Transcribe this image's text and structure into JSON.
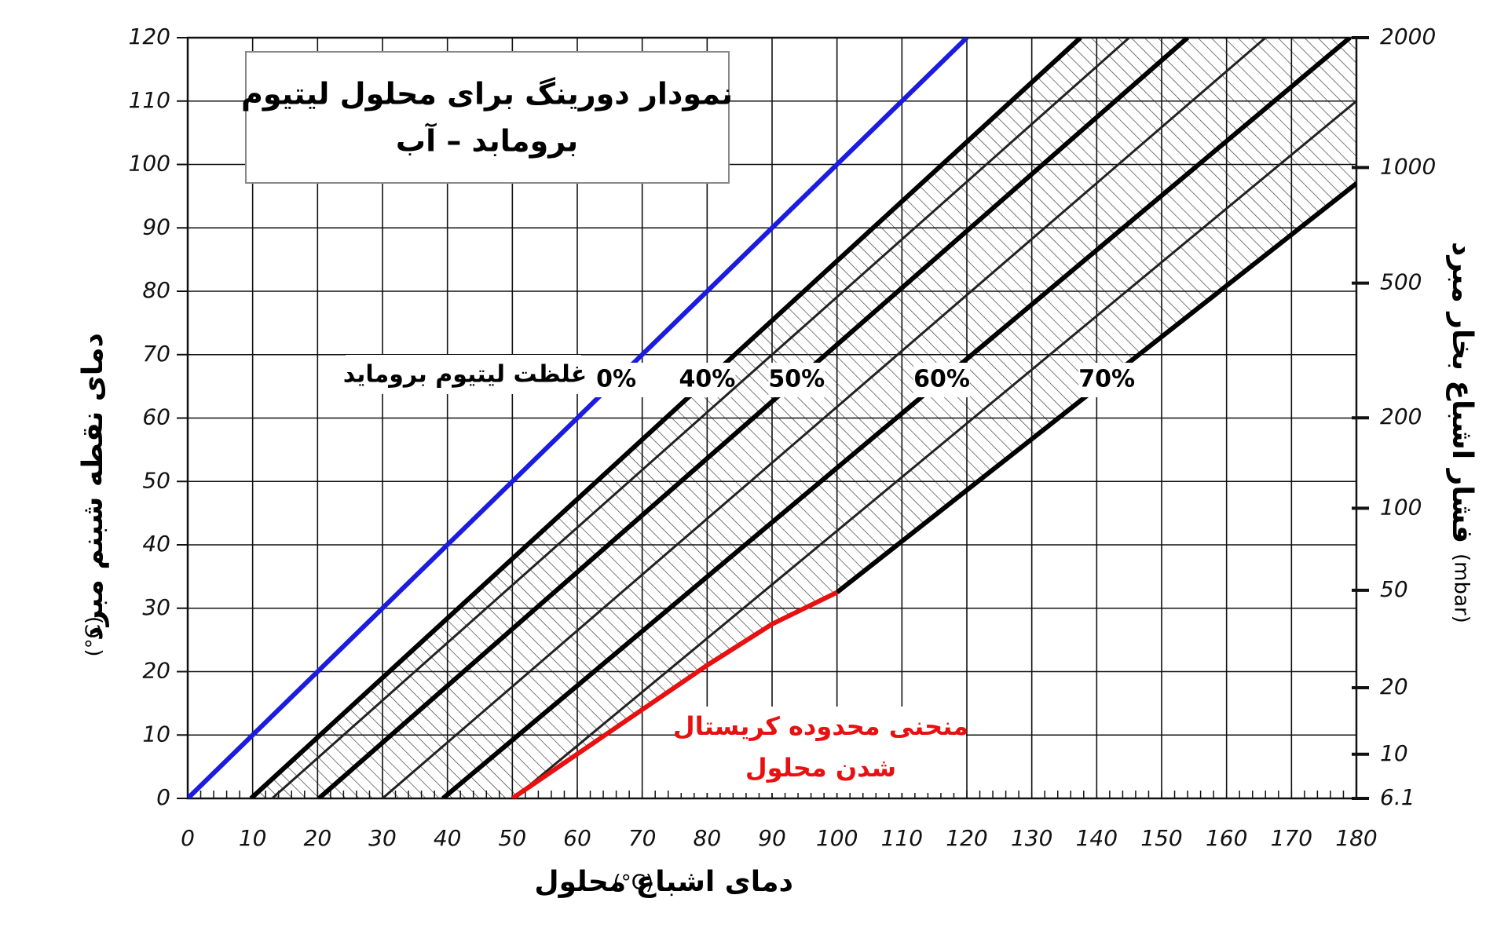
{
  "chart_data": {
    "type": "line",
    "title": "نمودار دورینگ برای محلول لیتیوم",
    "subtitle": "برومابد – آب",
    "xlabel": "دمای اشباع محلول",
    "xunit": "(°C)",
    "ylabel": "دمای نقطه شبنم مبرد",
    "yunit": "(°C)",
    "y2label": "فشار اشباع بخار مبرد",
    "y2unit": "(mbar)",
    "annotations": [
      "غلظت لیتیوم بروماید",
      "منحنی محدوده کریستال",
      "شدن محلول"
    ],
    "xlim": [
      0,
      180
    ],
    "xticks": [
      0,
      10,
      20,
      30,
      40,
      50,
      60,
      70,
      80,
      90,
      100,
      110,
      120,
      130,
      140,
      150,
      160,
      170,
      180
    ],
    "ylim": [
      0,
      120
    ],
    "yticks": [
      0,
      10,
      20,
      30,
      40,
      50,
      60,
      70,
      80,
      90,
      100,
      110,
      120
    ],
    "y2lim": [
      6.1,
      2000
    ],
    "y2scale": "water-saturation",
    "y2ticks": [
      6.1,
      10,
      20,
      50,
      100,
      200,
      500,
      1000,
      2000
    ],
    "grid": true,
    "series": [
      {
        "name": "0%",
        "color": "#1c1ce0",
        "x": [
          0,
          120
        ],
        "values": [
          0,
          120
        ]
      },
      {
        "name": "40%",
        "color": "#000000",
        "x": [
          9.75,
          137.5
        ],
        "values": [
          0,
          120
        ]
      },
      {
        "color": "#222222",
        "x": [
          13,
          145
        ],
        "values": [
          0,
          120
        ]
      },
      {
        "name": "50%",
        "color": "#000000",
        "x": [
          20.2,
          154
        ],
        "values": [
          0,
          120
        ]
      },
      {
        "color": "#222222",
        "x": [
          30,
          166
        ],
        "values": [
          0,
          120
        ]
      },
      {
        "name": "60%",
        "color": "#000000",
        "x": [
          39.3,
          179
        ],
        "values": [
          0,
          120
        ]
      },
      {
        "color": "#222222",
        "x": [
          50.2,
          180
        ],
        "values": [
          0,
          110
        ]
      },
      {
        "name": "70%",
        "color": "#000000",
        "x": [
          100,
          180
        ],
        "values": [
          32.5,
          97
        ]
      },
      {
        "color": "#e81010",
        "x": [
          50,
          60,
          70,
          80,
          90,
          100
        ],
        "values": [
          0,
          7,
          14,
          21,
          27.5,
          32.5
        ]
      }
    ]
  }
}
